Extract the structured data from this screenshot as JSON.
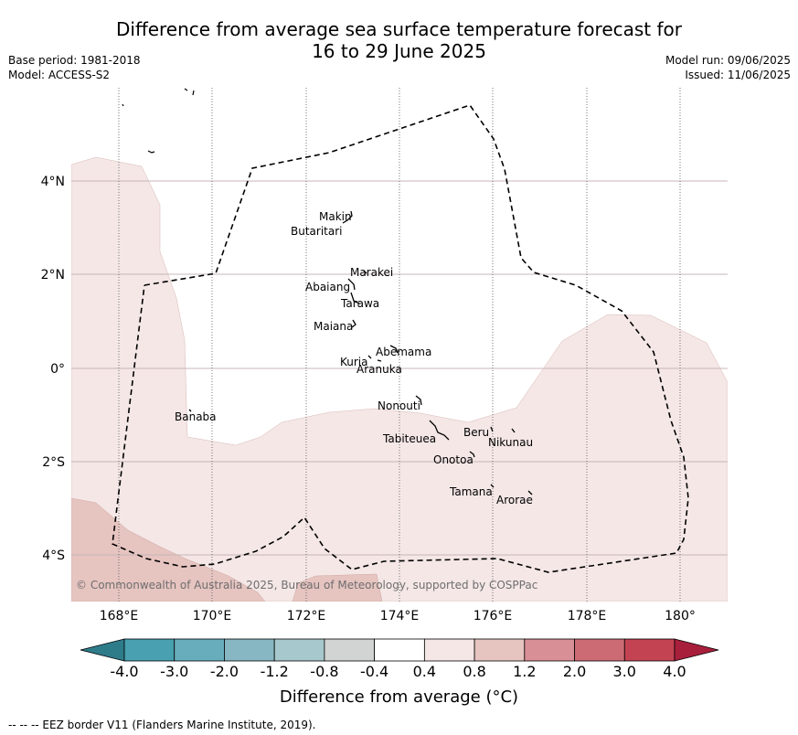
{
  "title": {
    "line1": "Difference from average sea surface temperature forecast for",
    "line2": "16 to 29 June 2025"
  },
  "meta_left": {
    "base_period": "Base period: 1981-2018",
    "model": "Model: ACCESS-S2"
  },
  "meta_right": {
    "model_run": "Model run: 09/06/2025",
    "issued": "Issued: 11/06/2025"
  },
  "map": {
    "lon_ticks": [
      "168°E",
      "170°E",
      "172°E",
      "174°E",
      "176°E",
      "178°E",
      "180°"
    ],
    "lat_ticks": [
      "4°N",
      "2°N",
      "0°",
      "2°S",
      "4°S"
    ],
    "islands": [
      {
        "name": "Makin"
      },
      {
        "name": "Butaritari"
      },
      {
        "name": "Marakei"
      },
      {
        "name": "Abaiang"
      },
      {
        "name": "Tarawa"
      },
      {
        "name": "Maiana"
      },
      {
        "name": "Abemama"
      },
      {
        "name": "Kuria"
      },
      {
        "name": "Aranuka"
      },
      {
        "name": "Nonouti"
      },
      {
        "name": "Banaba"
      },
      {
        "name": "Tabiteuea"
      },
      {
        "name": "Beru"
      },
      {
        "name": "Nikunau"
      },
      {
        "name": "Onotoa"
      },
      {
        "name": "Tamana"
      },
      {
        "name": "Arorae"
      }
    ],
    "copyright": "© Commonwealth of Australia 2025, Bureau of Meteorology, supported by COSPPac",
    "colors": {
      "band_0_4_to_0_8": "#f4e7e6",
      "band_0_8_to_1_2": "#e6c4c0",
      "neutral": "#ffffff",
      "eez_line": "#000000"
    }
  },
  "colorbar": {
    "labels": [
      "-4.0",
      "-3.0",
      "-2.0",
      "-1.2",
      "-0.8",
      "-0.4",
      "0.4",
      "0.8",
      "1.2",
      "2.0",
      "3.0",
      "4.0"
    ],
    "colors": [
      "#2e7c8a",
      "#48a0b0",
      "#68adbb",
      "#86b7c2",
      "#a7c8cc",
      "#d2d4d4",
      "#ffffff",
      "#f4e7e6",
      "#e6c4c0",
      "#d88f95",
      "#cd6b75",
      "#c34353",
      "#a81f3c"
    ],
    "title": "Difference from average (°C)"
  },
  "footer": "--  --  -- EEZ border V11 (Flanders Marine Institute, 2019)."
}
